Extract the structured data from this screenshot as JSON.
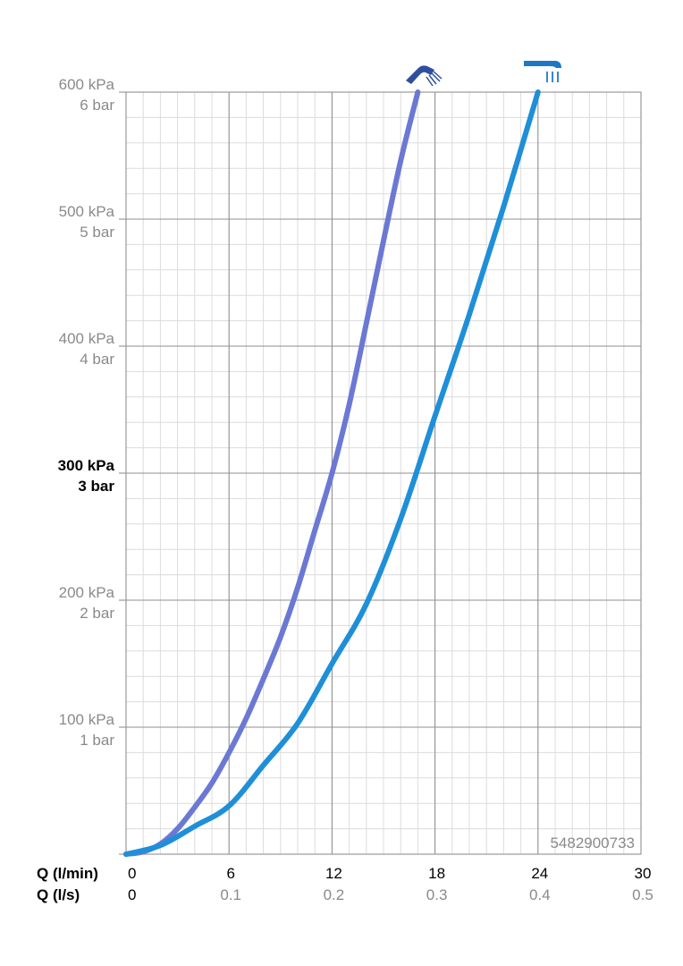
{
  "chart_data": {
    "type": "line",
    "title": "",
    "x_axis": {
      "label_primary": "Q (l/min)",
      "label_secondary": "Q (l/s)",
      "range": [
        0,
        30
      ],
      "ticks_primary": [
        "0",
        "6",
        "12",
        "18",
        "24",
        "30"
      ],
      "ticks_secondary": [
        "0",
        "0.1",
        "0.2",
        "0.3",
        "0.4",
        "0.5"
      ],
      "tick_values": [
        0,
        6,
        12,
        18,
        24,
        30
      ]
    },
    "y_axis": {
      "range": [
        0,
        600
      ],
      "unit": "kPa",
      "tick_values": [
        100,
        200,
        300,
        400,
        500,
        600
      ],
      "ticks_kpa": [
        "100 kPa",
        "200 kPa",
        "300 kPa",
        "400 kPa",
        "500 kPa",
        "600 kPa"
      ],
      "ticks_bar": [
        "1 bar",
        "2 bar",
        "3 bar",
        "4 bar",
        "5 bar",
        "6 bar"
      ],
      "highlight_value": 300
    },
    "grid": true,
    "series": [
      {
        "icon": "hand-shower-icon",
        "color": "#6b78d4",
        "x": [
          0,
          1,
          2,
          3,
          4,
          5,
          6,
          7,
          8,
          9,
          10,
          11,
          12,
          13,
          14,
          15,
          16,
          17
        ],
        "y": [
          0,
          2,
          8,
          20,
          37,
          56,
          80,
          107,
          138,
          171,
          210,
          255,
          300,
          354,
          418,
          483,
          546,
          600
        ]
      },
      {
        "icon": "overhead-shower-icon",
        "color": "#1e8fd8",
        "x": [
          0,
          2,
          4,
          6,
          8,
          10,
          12,
          14,
          16,
          18,
          20,
          22,
          24
        ],
        "y": [
          0,
          7,
          22,
          38,
          70,
          103,
          150,
          197,
          264,
          345,
          425,
          510,
          600
        ]
      }
    ],
    "annotation": "5482900733"
  }
}
